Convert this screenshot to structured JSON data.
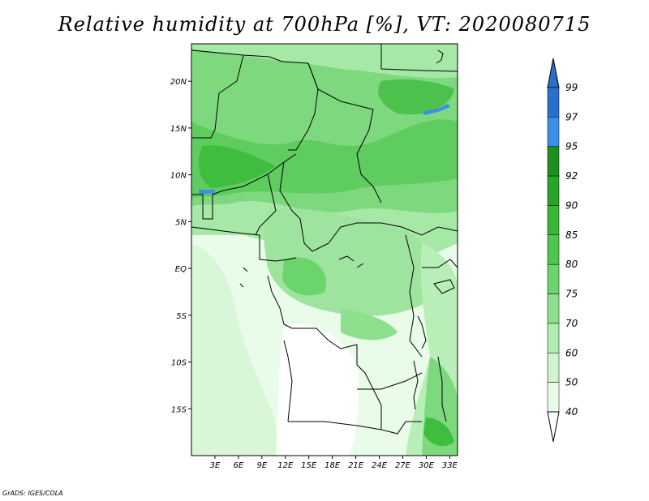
{
  "title": "Relative humidity at 700hPa [%], VT: 2020080715",
  "credit": "GrADS: IGES/COLA",
  "map": {
    "lon_range": [
      0,
      34
    ],
    "lat_range": [
      -20,
      24
    ],
    "lat_ticks": [
      {
        "value": 20,
        "label": "20N"
      },
      {
        "value": 15,
        "label": "15N"
      },
      {
        "value": 10,
        "label": "10N"
      },
      {
        "value": 5,
        "label": "5N"
      },
      {
        "value": 0,
        "label": "EQ"
      },
      {
        "value": -5,
        "label": "5S"
      },
      {
        "value": -10,
        "label": "10S"
      },
      {
        "value": -15,
        "label": "15S"
      }
    ],
    "lon_ticks": [
      {
        "value": 3,
        "label": "3E"
      },
      {
        "value": 6,
        "label": "6E"
      },
      {
        "value": 9,
        "label": "9E"
      },
      {
        "value": 12,
        "label": "12E"
      },
      {
        "value": 15,
        "label": "15E"
      },
      {
        "value": 18,
        "label": "18E"
      },
      {
        "value": 21,
        "label": "21E"
      },
      {
        "value": 24,
        "label": "24E"
      },
      {
        "value": 27,
        "label": "27E"
      },
      {
        "value": 30,
        "label": "30E"
      },
      {
        "value": 33,
        "label": "33E"
      }
    ]
  },
  "colorbar": {
    "levels": [
      {
        "label": "99",
        "color": "#2a6fc9"
      },
      {
        "label": "97",
        "color": "#1f66d6"
      },
      {
        "label": "95",
        "color": "#3d8fe6"
      },
      {
        "label": "92",
        "color": "#1e8f1e"
      },
      {
        "label": "90",
        "color": "#28a428"
      },
      {
        "label": "85",
        "color": "#37b637"
      },
      {
        "label": "80",
        "color": "#4fc64f"
      },
      {
        "label": "75",
        "color": "#6bd46b"
      },
      {
        "label": "70",
        "color": "#8ee08e"
      },
      {
        "label": "60",
        "color": "#b0ebb0"
      },
      {
        "label": "50",
        "color": "#cff4cf"
      },
      {
        "label": "40",
        "color": "#e9fbe9"
      }
    ]
  }
}
